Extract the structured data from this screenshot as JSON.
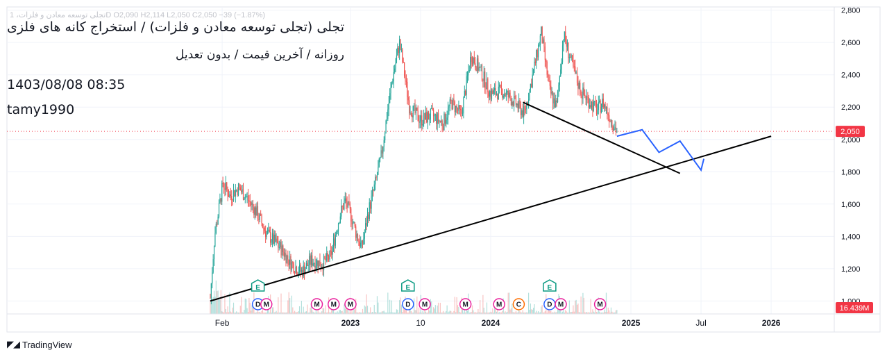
{
  "meta": {
    "title": "تجلی (تجلی توسعه معادن و فلزات) / استخراج کانه های فلزی",
    "interval": "روزانه / آخرین قیمت / بدون تعدیل",
    "datetime": "1403/08/08 08:35",
    "author": "tamy1990",
    "ohlc_line": "تجلی توسعه معادن و فلزات، 1D  O2,090  H2,114  L2,050  C2,050  −39 (−1.87%)",
    "brand": "TradingView"
  },
  "colors": {
    "up": "#26a69a",
    "down": "#ef5350",
    "price_label": "#f23645",
    "projection": "#2962ff",
    "trendline": "#000000",
    "earnings": "#089981",
    "dividend": "#2962ff",
    "meeting": "#e91e9c",
    "capital": "#ff6d00"
  },
  "chart_data": {
    "type": "candlestick",
    "y_ticks": [
      "2,800",
      "2,600",
      "2,400",
      "2,200",
      "2,000",
      "1,800",
      "1,600",
      "1,400",
      "1,200",
      "1,000"
    ],
    "y_tick_values": [
      2800,
      2600,
      2400,
      2200,
      2000,
      1800,
      1600,
      1400,
      1200,
      1000
    ],
    "ylim": [
      920,
      2820
    ],
    "x_ticks": [
      {
        "label": "Feb",
        "t": 2022.085,
        "bold": false
      },
      {
        "label": "2023",
        "t": 2023.0,
        "bold": true
      },
      {
        "label": "10",
        "t": 2023.5,
        "bold": false
      },
      {
        "label": "2024",
        "t": 2024.0,
        "bold": true
      },
      {
        "label": "2025",
        "t": 2025.0,
        "bold": true
      },
      {
        "label": "Jul",
        "t": 2025.5,
        "bold": false
      },
      {
        "label": "2026",
        "t": 2026.0,
        "bold": true
      }
    ],
    "xlim": [
      2020.55,
      2026.45
    ],
    "last_price": 2050,
    "last_price_label": "2,050",
    "volume_label": "16.439M",
    "price_path": [
      [
        2022.0,
        1020
      ],
      [
        2022.03,
        1400
      ],
      [
        2022.06,
        1560
      ],
      [
        2022.09,
        1730
      ],
      [
        2022.14,
        1650
      ],
      [
        2022.2,
        1700
      ],
      [
        2022.26,
        1640
      ],
      [
        2022.33,
        1550
      ],
      [
        2022.4,
        1420
      ],
      [
        2022.5,
        1330
      ],
      [
        2022.58,
        1230
      ],
      [
        2022.65,
        1180
      ],
      [
        2022.72,
        1250
      ],
      [
        2022.8,
        1230
      ],
      [
        2022.86,
        1280
      ],
      [
        2022.92,
        1520
      ],
      [
        2022.96,
        1620
      ],
      [
        2023.0,
        1540
      ],
      [
        2023.04,
        1420
      ],
      [
        2023.08,
        1330
      ],
      [
        2023.13,
        1560
      ],
      [
        2023.18,
        1740
      ],
      [
        2023.22,
        1900
      ],
      [
        2023.26,
        2150
      ],
      [
        2023.3,
        2380
      ],
      [
        2023.35,
        2600
      ],
      [
        2023.42,
        2200
      ],
      [
        2023.5,
        2120
      ],
      [
        2023.58,
        2150
      ],
      [
        2023.66,
        2100
      ],
      [
        2023.72,
        2230
      ],
      [
        2023.79,
        2150
      ],
      [
        2023.86,
        2520
      ],
      [
        2023.93,
        2420
      ],
      [
        2024.0,
        2280
      ],
      [
        2024.08,
        2300
      ],
      [
        2024.16,
        2240
      ],
      [
        2024.24,
        2160
      ],
      [
        2024.3,
        2400
      ],
      [
        2024.36,
        2660
      ],
      [
        2024.42,
        2300
      ],
      [
        2024.47,
        2200
      ],
      [
        2024.52,
        2650
      ],
      [
        2024.58,
        2460
      ],
      [
        2024.64,
        2300
      ],
      [
        2024.7,
        2240
      ],
      [
        2024.76,
        2180
      ],
      [
        2024.8,
        2230
      ],
      [
        2024.86,
        2120
      ],
      [
        2024.9,
        2050
      ]
    ],
    "trendlines": [
      {
        "name": "support",
        "from": [
          2022.0,
          1000
        ],
        "to": [
          2026.0,
          2020
        ]
      },
      {
        "name": "resistance",
        "from": [
          2024.23,
          2230
        ],
        "to": [
          2025.35,
          1790
        ]
      }
    ],
    "projection_path": [
      [
        2024.9,
        2020
      ],
      [
        2025.08,
        2060
      ],
      [
        2025.2,
        1920
      ],
      [
        2025.35,
        1990
      ],
      [
        2025.5,
        1810
      ],
      [
        2025.52,
        1880
      ]
    ],
    "events": [
      {
        "type": "E",
        "t": 2022.34,
        "row": "top"
      },
      {
        "type": "D",
        "t": 2022.34,
        "row": "bottom"
      },
      {
        "type": "M",
        "t": 2022.4,
        "row": "bottom"
      },
      {
        "type": "M",
        "t": 2022.76,
        "row": "bottom"
      },
      {
        "type": "M",
        "t": 2022.88,
        "row": "bottom"
      },
      {
        "type": "M",
        "t": 2023.0,
        "row": "bottom"
      },
      {
        "type": "E",
        "t": 2023.41,
        "row": "top"
      },
      {
        "type": "D",
        "t": 2023.41,
        "row": "bottom"
      },
      {
        "type": "M",
        "t": 2023.53,
        "row": "bottom"
      },
      {
        "type": "M",
        "t": 2023.82,
        "row": "bottom"
      },
      {
        "type": "M",
        "t": 2024.06,
        "row": "bottom"
      },
      {
        "type": "C",
        "t": 2024.2,
        "row": "bottom"
      },
      {
        "type": "E",
        "t": 2024.42,
        "row": "top"
      },
      {
        "type": "D",
        "t": 2024.42,
        "row": "bottom"
      },
      {
        "type": "M",
        "t": 2024.5,
        "row": "bottom"
      },
      {
        "type": "M",
        "t": 2024.78,
        "row": "bottom"
      }
    ]
  }
}
